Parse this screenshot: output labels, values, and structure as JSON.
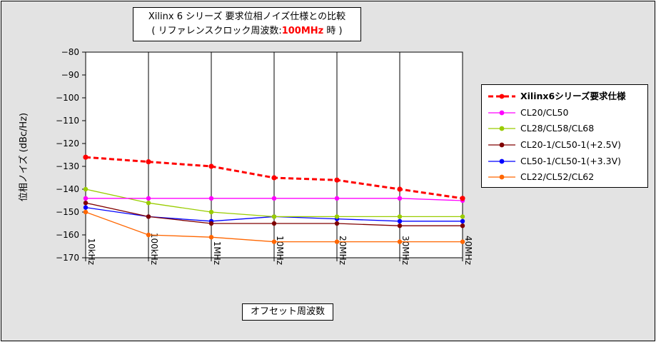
{
  "title": {
    "line1": "Xilinx 6 シリーズ 要求位相ノイズ仕様との比較",
    "line2_pre": "( リファレンスクロック周波数:",
    "line2_highlight": "100MHz",
    "line2_post": " 時 )"
  },
  "colors": {
    "plot_bg": "#ffffff",
    "frame_bg": "#e3e3e3",
    "highlight": "#ff0000"
  },
  "chart_data": {
    "type": "line",
    "categories": [
      "10kHz",
      "100kHz",
      "1MHz",
      "10MHz",
      "20MHz",
      "30MHz",
      "40MHz"
    ],
    "ylabel": "位相ノイズ (dBc/Hz)",
    "xlabel": "オフセット周波数",
    "ylim": [
      -170,
      -80
    ],
    "yticks": [
      -80,
      -90,
      -100,
      -110,
      -120,
      -130,
      -140,
      -150,
      -160,
      -170
    ],
    "grid": "vertical",
    "legend_position": "right",
    "series": [
      {
        "name": "Xilinx6シリーズ要求仕様",
        "color": "#ff0000",
        "dashed": true,
        "values": [
          -126,
          -128,
          -130,
          -135,
          -136,
          -140,
          -144
        ]
      },
      {
        "name": "CL20/CL50",
        "color": "#ff00ff",
        "dashed": false,
        "values": [
          -144,
          -144,
          -144,
          -144,
          -144,
          -144,
          -145
        ]
      },
      {
        "name": "CL28/CL58/CL68",
        "color": "#99cc00",
        "dashed": false,
        "values": [
          -140,
          -146,
          -150,
          -152,
          -152,
          -152,
          -152
        ]
      },
      {
        "name": "CL20-1/CL50-1(+2.5V)",
        "color": "#800000",
        "dashed": false,
        "values": [
          -146,
          -152,
          -155,
          -155,
          -155,
          -156,
          -156
        ]
      },
      {
        "name": "CL50-1/CL50-1(+3.3V)",
        "color": "#0000ff",
        "dashed": false,
        "values": [
          -148,
          -152,
          -154,
          -152,
          -153,
          -154,
          -154
        ]
      },
      {
        "name": "CL22/CL52/CL62",
        "color": "#ff6600",
        "dashed": false,
        "values": [
          -150,
          -160,
          -161,
          -163,
          -163,
          -163,
          -163
        ]
      }
    ]
  }
}
